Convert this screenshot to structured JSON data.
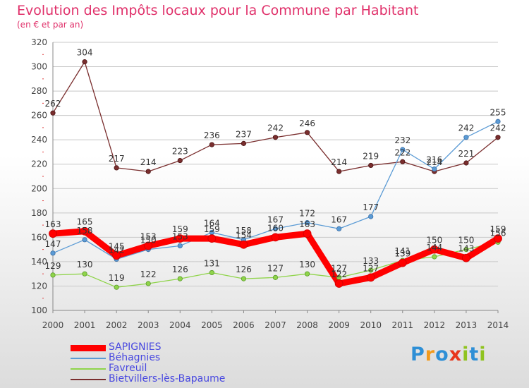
{
  "header": {
    "title": "Evolution des Impôts locaux pour la Commune par Habitant",
    "subtitle": "(en € et par an)"
  },
  "logo": {
    "text": "Proxiti"
  },
  "chart_data": {
    "type": "line",
    "title": "Evolution des Impôts locaux pour la Commune par Habitant",
    "subtitle": "(en € et par an)",
    "xlabel": "",
    "ylabel": "",
    "x": [
      "2000",
      "2001",
      "2002",
      "2003",
      "2004",
      "2005",
      "2006",
      "2007",
      "2008",
      "2009",
      "2010",
      "2011",
      "2012",
      "2013",
      "2014"
    ],
    "ylim": [
      100,
      320
    ],
    "yticks": [
      100,
      120,
      140,
      160,
      180,
      200,
      220,
      240,
      260,
      280,
      300,
      320
    ],
    "grid": "horizontal",
    "legend_position": "bottom-left",
    "series": [
      {
        "name": "SAPIGNIES",
        "color": "#ff0000",
        "values": [
          163,
          165,
          145,
          153,
          159,
          159,
          154,
          160,
          163,
          122,
          127,
          139,
          150,
          143,
          159
        ]
      },
      {
        "name": "Béhagnies",
        "color": "#5b9bd5",
        "values": [
          147,
          158,
          142,
          150,
          153,
          164,
          158,
          167,
          172,
          167,
          177,
          232,
          216,
          242,
          255
        ]
      },
      {
        "name": "Favreuil",
        "color": "#8fd44a",
        "values": [
          129,
          130,
          119,
          122,
          126,
          131,
          126,
          127,
          130,
          127,
          133,
          141,
          144,
          150,
          156
        ]
      },
      {
        "name": "Bietvillers-lès-Bapaume",
        "color": "#7a2e2e",
        "values": [
          262,
          304,
          217,
          214,
          223,
          236,
          237,
          242,
          246,
          214,
          219,
          222,
          214,
          221,
          242
        ]
      }
    ]
  }
}
